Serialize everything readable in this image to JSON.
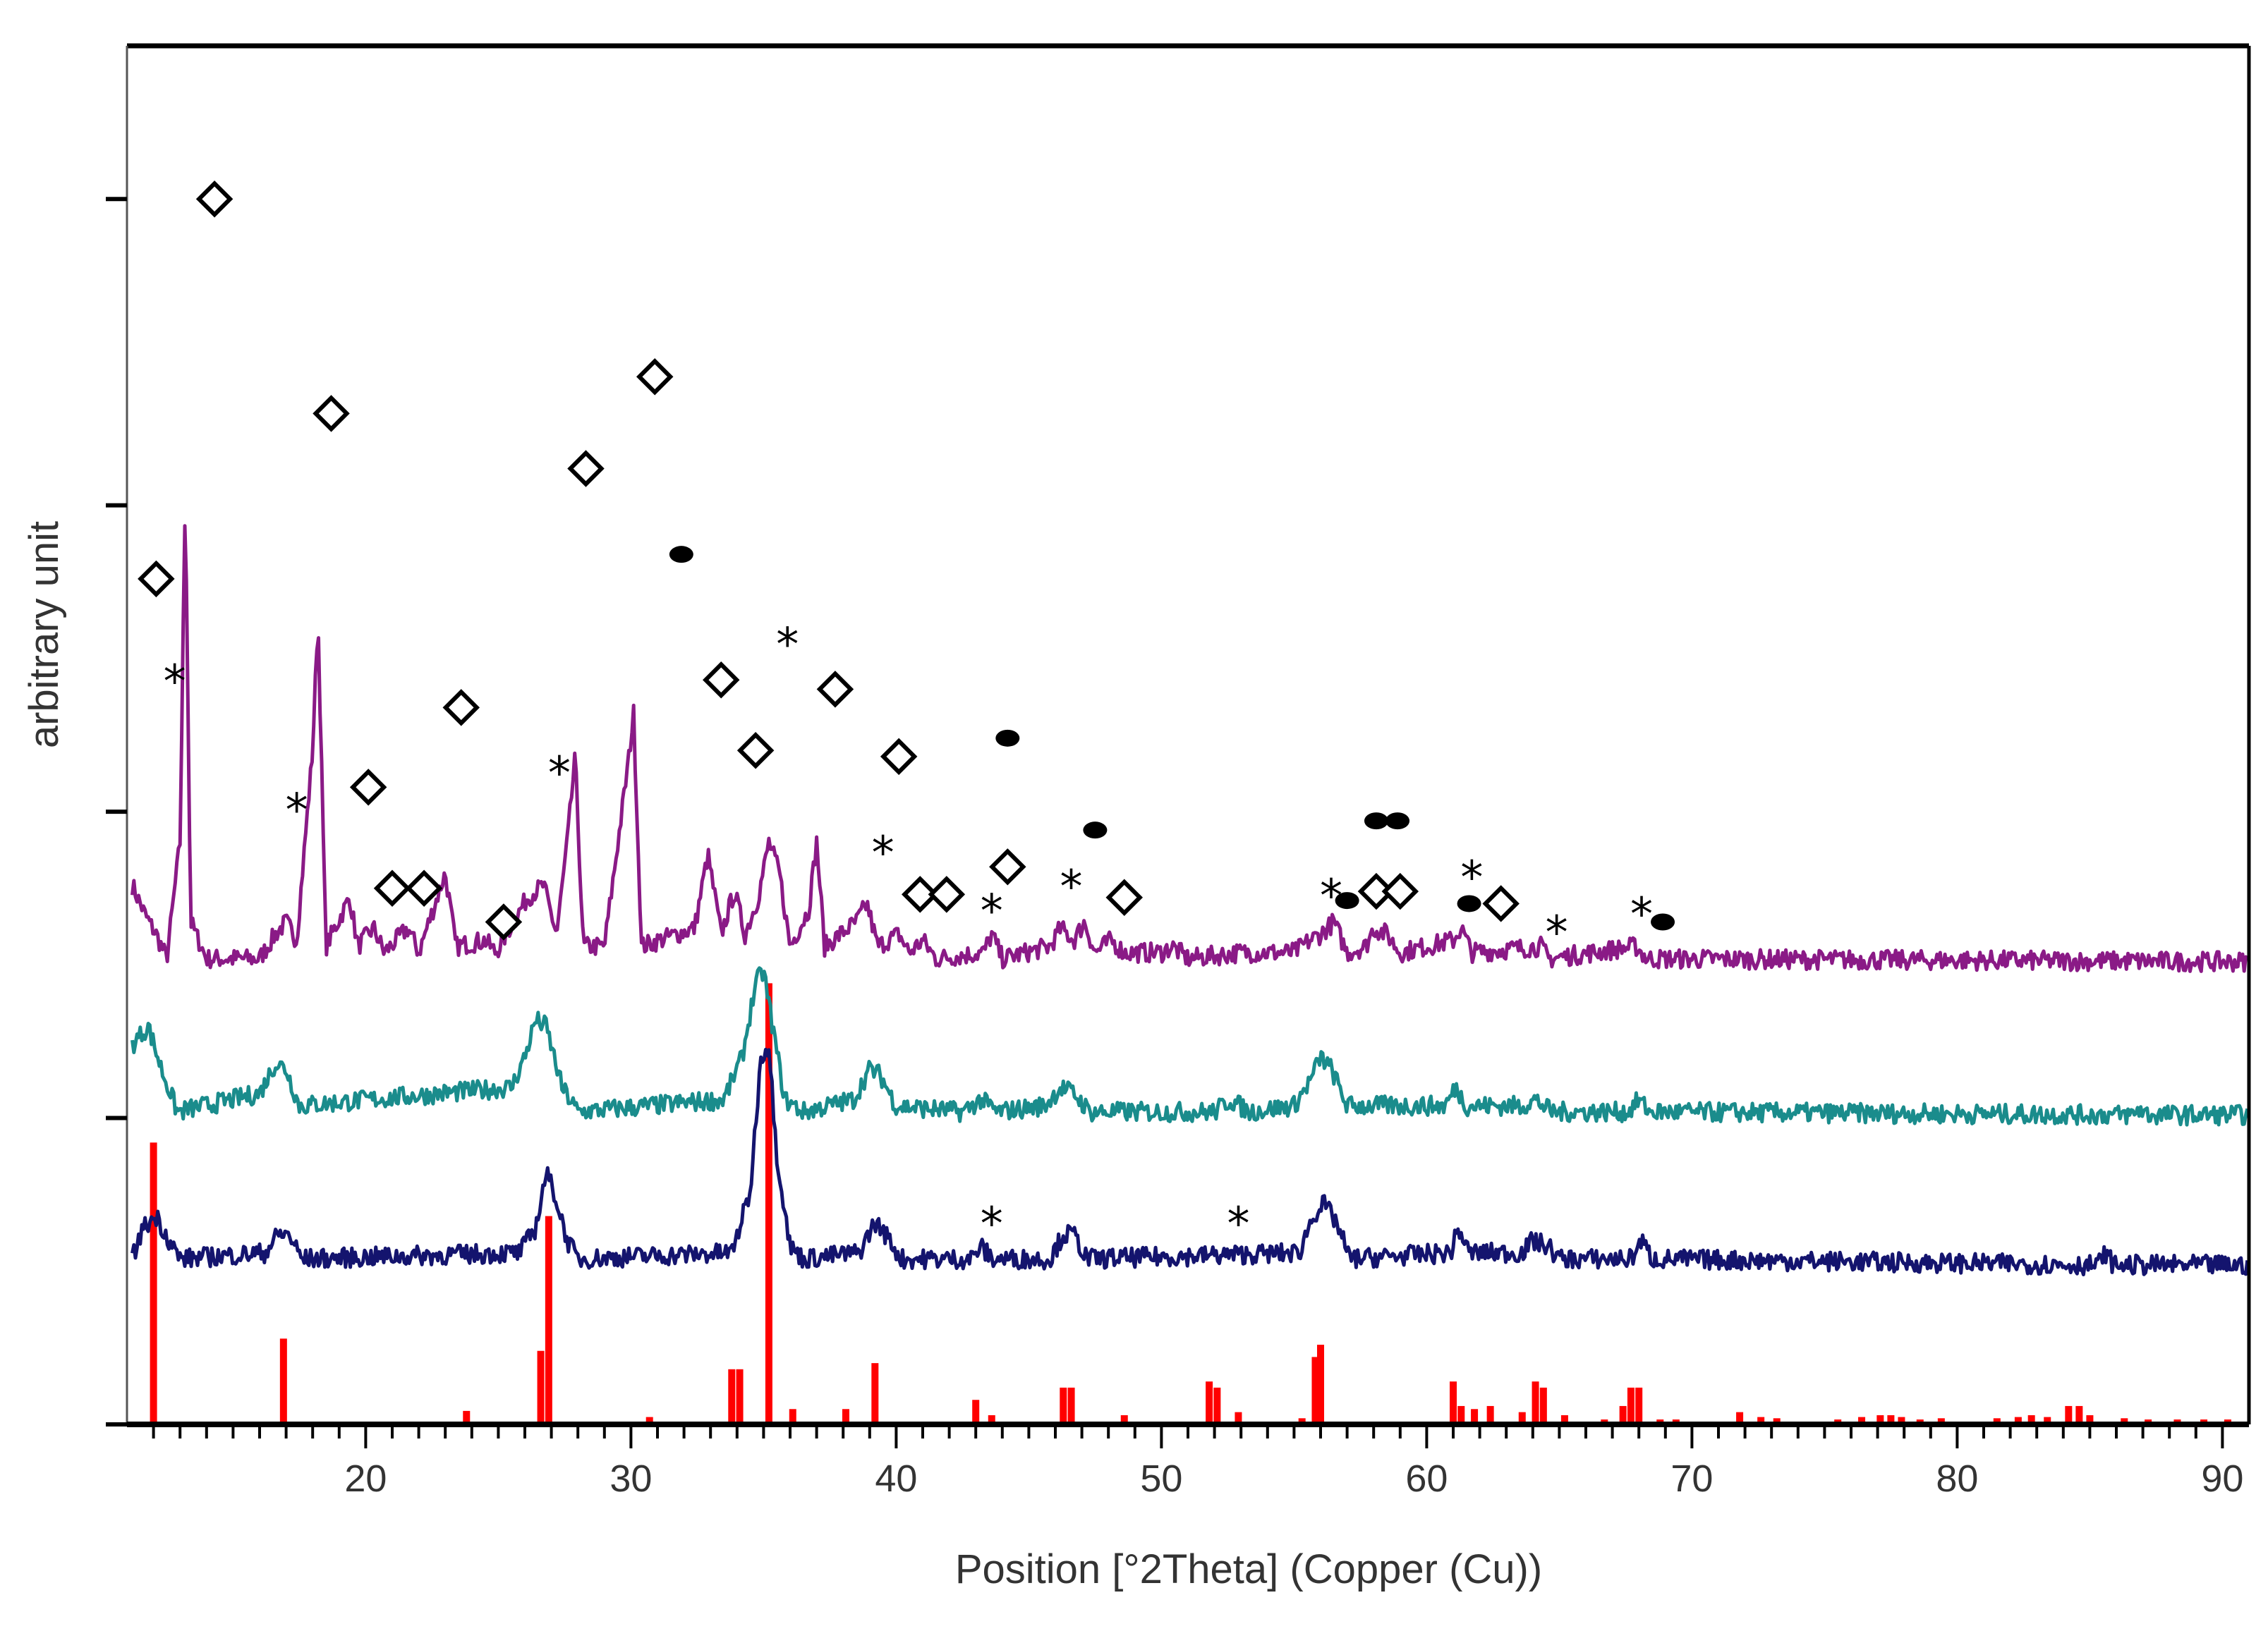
{
  "chart_data": {
    "type": "line",
    "title": "",
    "xlabel": "Position [°2Theta] (Copper (Cu))",
    "ylabel": "arbitrary unit",
    "xlim": [
      11,
      91
    ],
    "x_ticks": [
      20,
      30,
      40,
      50,
      60,
      70,
      80,
      90
    ],
    "grid": false,
    "legend": "none",
    "colors": {
      "top_trace": "#8a1a86",
      "middle_trace": "#1a8c8c",
      "bottom_trace": "#14146e",
      "reference_sticks": "#ff0000",
      "markers": "#000000"
    },
    "series": [
      {
        "color": "#8a1a86",
        "baseline": 0.755,
        "points": [
          [
            11.2,
            0.88
          ],
          [
            11.7,
            0.83
          ],
          [
            12.1,
            0.8
          ],
          [
            12.5,
            0.76
          ],
          [
            13,
            0.95
          ],
          [
            13.2,
            1.53
          ],
          [
            13.4,
            0.82
          ],
          [
            14,
            0.76
          ],
          [
            16,
            0.76
          ],
          [
            16.6,
            0.8
          ],
          [
            17,
            0.82
          ],
          [
            17.4,
            0.79
          ],
          [
            18,
            1.1
          ],
          [
            18.2,
            1.32
          ],
          [
            18.5,
            0.78
          ],
          [
            19.4,
            0.86
          ],
          [
            19.7,
            0.78
          ],
          [
            20.3,
            0.81
          ],
          [
            20.7,
            0.77
          ],
          [
            21.6,
            0.81
          ],
          [
            22,
            0.77
          ],
          [
            23,
            0.9
          ],
          [
            23.4,
            0.78
          ],
          [
            24.5,
            0.79
          ],
          [
            24.9,
            0.77
          ],
          [
            26.1,
            0.86
          ],
          [
            26.7,
            0.88
          ],
          [
            27.2,
            0.8
          ],
          [
            27.6,
            0.95
          ],
          [
            27.9,
            1.09
          ],
          [
            28.2,
            0.78
          ],
          [
            29,
            0.78
          ],
          [
            29.9,
            1.08
          ],
          [
            30.1,
            1.16
          ],
          [
            30.4,
            0.78
          ],
          [
            32.4,
            0.81
          ],
          [
            32.9,
            0.93
          ],
          [
            33.4,
            0.8
          ],
          [
            33.9,
            0.87
          ],
          [
            34.3,
            0.8
          ],
          [
            34.8,
            0.86
          ],
          [
            35.2,
            0.95
          ],
          [
            35.6,
            0.9
          ],
          [
            36,
            0.78
          ],
          [
            36.7,
            0.84
          ],
          [
            37,
            0.95
          ],
          [
            37.3,
            0.78
          ],
          [
            38.5,
            0.82
          ],
          [
            38.9,
            0.85
          ],
          [
            39.3,
            0.78
          ],
          [
            40.1,
            0.8
          ],
          [
            40.5,
            0.77
          ],
          [
            41,
            0.79
          ],
          [
            41.5,
            0.76
          ],
          [
            43.3,
            0.77
          ],
          [
            43.6,
            0.8
          ],
          [
            44,
            0.76
          ],
          [
            45.8,
            0.78
          ],
          [
            46.2,
            0.81
          ],
          [
            46.7,
            0.79
          ],
          [
            47.1,
            0.82
          ],
          [
            47.5,
            0.77
          ],
          [
            48.1,
            0.79
          ],
          [
            48.6,
            0.77
          ],
          [
            50,
            0.77
          ],
          [
            50.4,
            0.78
          ],
          [
            51,
            0.76
          ],
          [
            53,
            0.77
          ],
          [
            55,
            0.77
          ],
          [
            55.6,
            0.79
          ],
          [
            56,
            0.8
          ],
          [
            56.5,
            0.82
          ],
          [
            57,
            0.77
          ],
          [
            57.7,
            0.78
          ],
          [
            58,
            0.81
          ],
          [
            58.5,
            0.8
          ],
          [
            59,
            0.77
          ],
          [
            61,
            0.79
          ],
          [
            61.3,
            0.81
          ],
          [
            61.7,
            0.77
          ],
          [
            64.3,
            0.78
          ],
          [
            64.6,
            0.76
          ],
          [
            67.9,
            0.78
          ],
          [
            68.3,
            0.76
          ],
          [
            91,
            0.755
          ]
        ]
      },
      {
        "color": "#1a8c8c",
        "baseline": 0.505,
        "points": [
          [
            11.2,
            0.62
          ],
          [
            11.8,
            0.65
          ],
          [
            12.3,
            0.58
          ],
          [
            12.9,
            0.51
          ],
          [
            16,
            0.54
          ],
          [
            16.6,
            0.59
          ],
          [
            17,
            0.58
          ],
          [
            17.5,
            0.52
          ],
          [
            25.5,
            0.55
          ],
          [
            26,
            0.6
          ],
          [
            26.4,
            0.66
          ],
          [
            26.8,
            0.65
          ],
          [
            27.4,
            0.55
          ],
          [
            28,
            0.51
          ],
          [
            33.5,
            0.53
          ],
          [
            34.2,
            0.6
          ],
          [
            34.7,
            0.72
          ],
          [
            35,
            0.74
          ],
          [
            35.3,
            0.66
          ],
          [
            35.8,
            0.53
          ],
          [
            36.5,
            0.51
          ],
          [
            38.4,
            0.53
          ],
          [
            39,
            0.58
          ],
          [
            39.4,
            0.57
          ],
          [
            40,
            0.52
          ],
          [
            42.5,
            0.51
          ],
          [
            43.2,
            0.53
          ],
          [
            43.8,
            0.51
          ],
          [
            45.6,
            0.52
          ],
          [
            46.2,
            0.55
          ],
          [
            46.7,
            0.54
          ],
          [
            47.3,
            0.51
          ],
          [
            52,
            0.51
          ],
          [
            52.6,
            0.53
          ],
          [
            53.3,
            0.51
          ],
          [
            55,
            0.52
          ],
          [
            55.6,
            0.56
          ],
          [
            56,
            0.6
          ],
          [
            56.4,
            0.58
          ],
          [
            57,
            0.52
          ],
          [
            60.7,
            0.52
          ],
          [
            61.1,
            0.55
          ],
          [
            61.5,
            0.52
          ],
          [
            63.6,
            0.52
          ],
          [
            64.1,
            0.53
          ],
          [
            64.7,
            0.51
          ],
          [
            67.6,
            0.51
          ],
          [
            68,
            0.53
          ],
          [
            68.4,
            0.51
          ],
          [
            86.6,
            0.505
          ],
          [
            86.9,
            0.515
          ],
          [
            87.2,
            0.505
          ],
          [
            91,
            0.505
          ]
        ]
      },
      {
        "color": "#14146e",
        "baseline": 0.26,
        "points": [
          [
            11.2,
            0.27
          ],
          [
            11.6,
            0.32
          ],
          [
            12.1,
            0.34
          ],
          [
            12.6,
            0.3
          ],
          [
            13,
            0.27
          ],
          [
            16.2,
            0.28
          ],
          [
            16.7,
            0.31
          ],
          [
            17.1,
            0.31
          ],
          [
            17.6,
            0.27
          ],
          [
            25.8,
            0.28
          ],
          [
            26.4,
            0.32
          ],
          [
            26.8,
            0.41
          ],
          [
            27.1,
            0.38
          ],
          [
            27.6,
            0.3
          ],
          [
            28,
            0.27
          ],
          [
            33.8,
            0.28
          ],
          [
            34.5,
            0.38
          ],
          [
            34.9,
            0.6
          ],
          [
            35.2,
            0.62
          ],
          [
            35.5,
            0.44
          ],
          [
            36,
            0.29
          ],
          [
            36.5,
            0.27
          ],
          [
            38.6,
            0.28
          ],
          [
            39.2,
            0.33
          ],
          [
            39.6,
            0.31
          ],
          [
            40.2,
            0.27
          ],
          [
            42.8,
            0.27
          ],
          [
            43.2,
            0.29
          ],
          [
            43.6,
            0.27
          ],
          [
            45.8,
            0.27
          ],
          [
            46.3,
            0.31
          ],
          [
            46.7,
            0.31
          ],
          [
            47.2,
            0.27
          ],
          [
            55.2,
            0.28
          ],
          [
            55.7,
            0.34
          ],
          [
            56.1,
            0.36
          ],
          [
            56.6,
            0.33
          ],
          [
            57.1,
            0.27
          ],
          [
            60.9,
            0.28
          ],
          [
            61.2,
            0.32
          ],
          [
            61.6,
            0.28
          ],
          [
            63.6,
            0.28
          ],
          [
            64,
            0.3
          ],
          [
            64.6,
            0.29
          ],
          [
            65,
            0.27
          ],
          [
            67.7,
            0.27
          ],
          [
            68.1,
            0.3
          ],
          [
            68.5,
            0.27
          ],
          [
            85.3,
            0.26
          ],
          [
            85.6,
            0.28
          ],
          [
            85.9,
            0.26
          ],
          [
            91,
            0.26
          ]
        ]
      }
    ],
    "reference_sticks": [
      [
        12,
        0.46
      ],
      [
        16.9,
        0.14
      ],
      [
        23.8,
        0.022
      ],
      [
        26.6,
        0.12
      ],
      [
        26.9,
        0.34
      ],
      [
        30.7,
        0.012
      ],
      [
        33.8,
        0.09
      ],
      [
        34.1,
        0.09
      ],
      [
        35.2,
        0.72
      ],
      [
        36.1,
        0.025
      ],
      [
        38.1,
        0.025
      ],
      [
        39.2,
        0.1
      ],
      [
        43,
        0.04
      ],
      [
        43.6,
        0.015
      ],
      [
        46.3,
        0.06
      ],
      [
        46.6,
        0.06
      ],
      [
        48.6,
        0.015
      ],
      [
        51.8,
        0.07
      ],
      [
        52.1,
        0.06
      ],
      [
        52.9,
        0.02
      ],
      [
        55.3,
        0.01
      ],
      [
        55.8,
        0.11
      ],
      [
        56,
        0.13
      ],
      [
        61,
        0.07
      ],
      [
        61.3,
        0.03
      ],
      [
        61.8,
        0.025
      ],
      [
        62.4,
        0.03
      ],
      [
        63.6,
        0.02
      ],
      [
        64.1,
        0.07
      ],
      [
        64.4,
        0.06
      ],
      [
        65.2,
        0.015
      ],
      [
        66.7,
        0.008
      ],
      [
        67.4,
        0.03
      ],
      [
        67.7,
        0.06
      ],
      [
        68,
        0.06
      ],
      [
        68.8,
        0.008
      ],
      [
        69.4,
        0.008
      ],
      [
        71.8,
        0.02
      ],
      [
        72.6,
        0.012
      ],
      [
        73.2,
        0.01
      ],
      [
        75.5,
        0.008
      ],
      [
        76.4,
        0.012
      ],
      [
        77.1,
        0.015
      ],
      [
        77.5,
        0.015
      ],
      [
        77.9,
        0.012
      ],
      [
        78.6,
        0.008
      ],
      [
        79.4,
        0.01
      ],
      [
        81.5,
        0.01
      ],
      [
        82.3,
        0.012
      ],
      [
        82.8,
        0.015
      ],
      [
        83.4,
        0.012
      ],
      [
        84.2,
        0.03
      ],
      [
        84.6,
        0.03
      ],
      [
        85,
        0.015
      ],
      [
        86.3,
        0.01
      ],
      [
        87.2,
        0.008
      ],
      [
        88.3,
        0.008
      ],
      [
        89.3,
        0.008
      ],
      [
        90.2,
        0.008
      ]
    ],
    "markers": [
      {
        "type": "diamond",
        "x": 12.1,
        "y": 1.38
      },
      {
        "type": "star",
        "x": 12.8,
        "y": 1.215
      },
      {
        "type": "diamond",
        "x": 14.3,
        "y": 2.0
      },
      {
        "type": "star",
        "x": 17.4,
        "y": 1.005
      },
      {
        "type": "diamond",
        "x": 18.7,
        "y": 1.65
      },
      {
        "type": "diamond",
        "x": 20.1,
        "y": 1.04
      },
      {
        "type": "diamond",
        "x": 21,
        "y": 0.875
      },
      {
        "type": "diamond",
        "x": 22.2,
        "y": 0.875
      },
      {
        "type": "diamond",
        "x": 23.6,
        "y": 1.17
      },
      {
        "type": "diamond",
        "x": 25.2,
        "y": 0.82
      },
      {
        "type": "star",
        "x": 27.3,
        "y": 1.065
      },
      {
        "type": "diamond",
        "x": 28.3,
        "y": 1.56
      },
      {
        "type": "diamond",
        "x": 30.9,
        "y": 1.71
      },
      {
        "type": "dot",
        "x": 31.9,
        "y": 1.42
      },
      {
        "type": "diamond",
        "x": 33.4,
        "y": 1.215
      },
      {
        "type": "star",
        "x": 35.9,
        "y": 1.275
      },
      {
        "type": "diamond",
        "x": 34.7,
        "y": 1.1
      },
      {
        "type": "diamond",
        "x": 37.7,
        "y": 1.2
      },
      {
        "type": "star",
        "x": 39.5,
        "y": 0.935
      },
      {
        "type": "diamond",
        "x": 40.1,
        "y": 1.09
      },
      {
        "type": "diamond",
        "x": 40.9,
        "y": 0.865
      },
      {
        "type": "diamond",
        "x": 41.9,
        "y": 0.865
      },
      {
        "type": "star",
        "x": 43.6,
        "y": 0.84
      },
      {
        "type": "dot",
        "x": 44.2,
        "y": 1.12
      },
      {
        "type": "diamond",
        "x": 44.2,
        "y": 0.91
      },
      {
        "type": "star",
        "x": 46.6,
        "y": 0.88
      },
      {
        "type": "dot",
        "x": 47.5,
        "y": 0.97
      },
      {
        "type": "diamond",
        "x": 48.6,
        "y": 0.86
      },
      {
        "type": "star",
        "x": 56.4,
        "y": 0.865
      },
      {
        "type": "dot",
        "x": 57,
        "y": 0.855
      },
      {
        "type": "diamond",
        "x": 58.1,
        "y": 0.87
      },
      {
        "type": "dot",
        "x": 58.1,
        "y": 0.985
      },
      {
        "type": "diamond",
        "x": 59,
        "y": 0.87
      },
      {
        "type": "dot",
        "x": 58.9,
        "y": 0.985
      },
      {
        "type": "star",
        "x": 61.7,
        "y": 0.895
      },
      {
        "type": "dot",
        "x": 61.6,
        "y": 0.85
      },
      {
        "type": "diamond",
        "x": 62.8,
        "y": 0.85
      },
      {
        "type": "star",
        "x": 64.9,
        "y": 0.805
      },
      {
        "type": "star",
        "x": 68.1,
        "y": 0.835
      },
      {
        "type": "dot",
        "x": 68.9,
        "y": 0.82
      },
      {
        "type": "star",
        "x": 43.6,
        "y": 0.33
      },
      {
        "type": "star",
        "x": 52.9,
        "y": 0.33
      }
    ]
  }
}
